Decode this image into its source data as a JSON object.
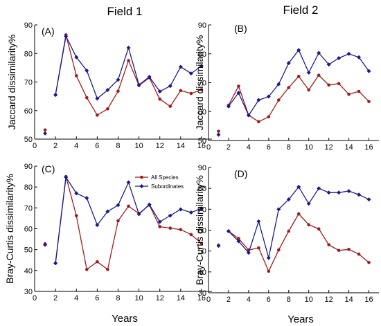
{
  "field_titles": [
    "Field 1",
    "Field 2"
  ],
  "x_axis_label": "Years",
  "legend": {
    "all_species": "All Species",
    "subordinates": "Subordinates"
  },
  "colors": {
    "all_species": "#a11a1a",
    "subordinates": "#1a1a8c"
  },
  "chart_data": [
    {
      "type": "line",
      "panel": "(A)",
      "field": "Field 1",
      "ylabel": "Jaccard dissimilarity%",
      "xlim": [
        0,
        17
      ],
      "ylim": [
        50,
        90
      ],
      "xticks": [
        0,
        2,
        4,
        6,
        8,
        10,
        12,
        14,
        16
      ],
      "yticks": [
        50,
        60,
        70,
        80,
        90
      ],
      "series": [
        {
          "name": "All Species",
          "x": [
            1,
            2,
            3,
            4,
            5,
            6,
            7,
            8,
            9,
            10,
            11,
            12,
            13,
            14,
            15,
            16
          ],
          "values": [
            53.2,
            65.5,
            86.5,
            72.2,
            64.5,
            58.4,
            60.6,
            66.8,
            77.5,
            68.8,
            71.5,
            64.0,
            61.5,
            67.0,
            66.0,
            67.3
          ]
        },
        {
          "name": "Subordinates",
          "x": [
            1,
            2,
            3,
            4,
            5,
            6,
            7,
            8,
            9,
            10,
            11,
            12,
            13,
            14,
            15,
            16
          ],
          "values": [
            52.0,
            65.5,
            86.0,
            78.7,
            74.0,
            64.2,
            67.2,
            70.8,
            82.0,
            69.0,
            71.8,
            66.7,
            68.6,
            75.3,
            73.0,
            75.6
          ]
        }
      ]
    },
    {
      "type": "line",
      "panel": "(B)",
      "field": "Field 2",
      "ylabel": "Jaccard dissimilarity%",
      "xlim": [
        0,
        17
      ],
      "ylim": [
        50,
        90
      ],
      "xticks": [
        0,
        2,
        4,
        6,
        8,
        10,
        12,
        14,
        16
      ],
      "yticks": [
        50,
        60,
        70,
        80,
        90
      ],
      "series": [
        {
          "name": "All Species",
          "x": [
            1,
            2,
            3,
            4,
            5,
            6,
            7,
            8,
            9,
            10,
            11,
            12,
            13,
            14,
            15,
            16
          ],
          "values": [
            53.2,
            62.2,
            68.8,
            58.8,
            56.5,
            58.2,
            64.0,
            68.3,
            72.2,
            67.5,
            72.6,
            69.2,
            69.7,
            66.0,
            67.0,
            63.5
          ]
        },
        {
          "name": "Subordinates",
          "x": [
            1,
            2,
            3,
            4,
            5,
            6,
            7,
            8,
            9,
            10,
            11,
            12,
            13,
            14,
            15,
            16
          ],
          "values": [
            52.0,
            61.8,
            66.5,
            58.7,
            64.0,
            65.2,
            69.5,
            76.8,
            81.3,
            73.5,
            80.3,
            76.3,
            78.5,
            80.0,
            78.8,
            74.0
          ]
        }
      ]
    },
    {
      "type": "line",
      "panel": "(C)",
      "field": "Field 1",
      "ylabel": "Bray-Curtis dissimilarity%",
      "xlim": [
        0,
        17
      ],
      "ylim": [
        30,
        90
      ],
      "xticks": [
        0,
        2,
        4,
        6,
        8,
        10,
        12,
        14,
        16
      ],
      "yticks": [
        30,
        40,
        50,
        60,
        70,
        80,
        90
      ],
      "series": [
        {
          "name": "All Species",
          "x": [
            1,
            2,
            3,
            4,
            5,
            6,
            7,
            8,
            9,
            10,
            11,
            12,
            13,
            14,
            15,
            16
          ],
          "values": [
            52.8,
            43.5,
            85.0,
            66.3,
            40.5,
            44.2,
            40.5,
            63.8,
            70.8,
            67.3,
            71.3,
            61.0,
            60.3,
            59.6,
            57.2,
            53.0
          ]
        },
        {
          "name": "Subordinates",
          "x": [
            1,
            2,
            3,
            4,
            5,
            6,
            7,
            8,
            9,
            10,
            11,
            12,
            13,
            14,
            15,
            16
          ],
          "values": [
            52.3,
            43.5,
            84.7,
            77.0,
            74.7,
            61.8,
            68.3,
            71.3,
            82.2,
            67.0,
            71.6,
            63.3,
            66.3,
            69.3,
            67.8,
            69.7
          ]
        }
      ]
    },
    {
      "type": "line",
      "panel": "(D)",
      "field": "Field 2",
      "ylabel": "Bray-Curtis dissimilarity%",
      "xlim": [
        0,
        17
      ],
      "ylim": [
        30,
        90
      ],
      "xticks": [
        0,
        2,
        4,
        6,
        8,
        10,
        12,
        14,
        16
      ],
      "yticks": [
        30,
        40,
        50,
        60,
        70,
        80,
        90
      ],
      "series": [
        {
          "name": "All Species",
          "x": [
            1,
            2,
            3,
            4,
            5,
            6,
            7,
            8,
            9,
            10,
            11,
            12,
            13,
            14,
            15,
            16
          ],
          "values": [
            52.8,
            59.5,
            56.0,
            50.5,
            51.5,
            40.3,
            50.5,
            59.5,
            67.8,
            62.6,
            60.6,
            53.0,
            50.3,
            50.8,
            48.5,
            44.5
          ]
        },
        {
          "name": "Subordinates",
          "x": [
            1,
            2,
            3,
            4,
            5,
            6,
            7,
            8,
            9,
            10,
            11,
            12,
            13,
            14,
            15,
            16
          ],
          "values": [
            52.5,
            59.5,
            54.7,
            49.2,
            64.2,
            46.7,
            70.0,
            74.7,
            80.7,
            72.7,
            80.0,
            78.0,
            78.0,
            78.7,
            77.0,
            74.7
          ]
        }
      ]
    }
  ]
}
